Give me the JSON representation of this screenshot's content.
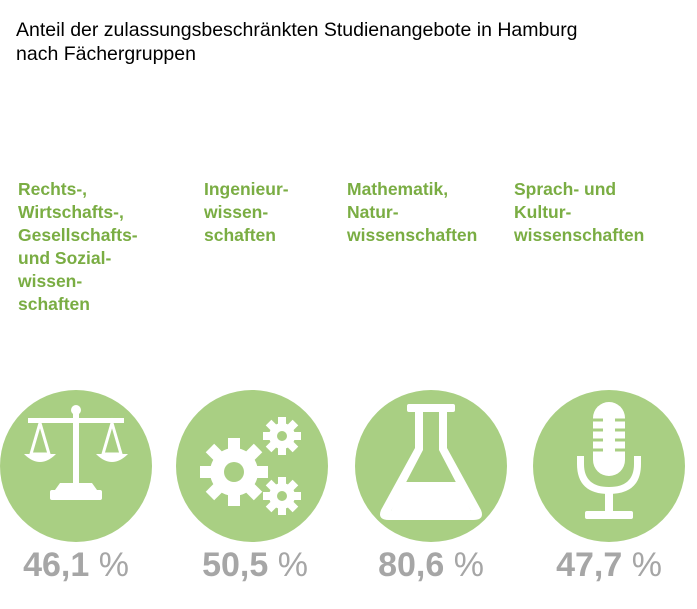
{
  "title": "Anteil der zulassungsbeschränkten Studienangebote in Hamburg\nnach Fächergruppen",
  "colors": {
    "label": "#7aad43",
    "circle": "#a9cf83",
    "icon": "#ffffff",
    "value": "#a6a6a6"
  },
  "chart_data": {
    "type": "bar",
    "categories": [
      "Rechts-,\nWirtschafts-,\nGesellschafts-\nund Sozial-\nwissen-\nschaften",
      "Ingenieur-\nwissen-\nschaften",
      "Mathematik,\nNatur-\nwissenschaften",
      "Sprach- und\nKultur-\nwissenschaften"
    ],
    "values": [
      46.1,
      50.5,
      80.6,
      47.7
    ],
    "value_labels": [
      "46,1",
      "50,5",
      "80,6",
      "47,7"
    ],
    "unit": "%",
    "icons": [
      "scales-icon",
      "gears-icon",
      "flask-icon",
      "microphone-icon"
    ]
  }
}
